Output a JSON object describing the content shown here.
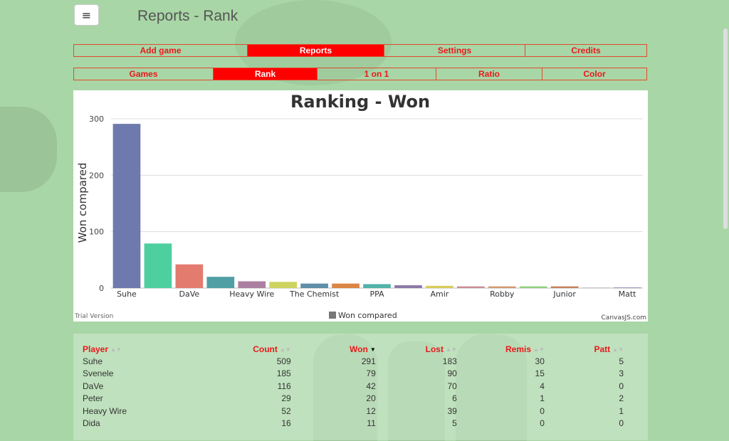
{
  "header": {
    "menu_icon": "≡",
    "title": "Reports - Rank"
  },
  "nav_main": [
    {
      "label": "Add game",
      "active": false
    },
    {
      "label": "Reports",
      "active": true
    },
    {
      "label": "Settings",
      "active": false
    },
    {
      "label": "Credits",
      "active": false
    }
  ],
  "nav_sub": [
    {
      "label": "Games",
      "active": false
    },
    {
      "label": "Rank",
      "active": true
    },
    {
      "label": "1 on 1",
      "active": false
    },
    {
      "label": "Ratio",
      "active": false
    },
    {
      "label": "Color",
      "active": false
    }
  ],
  "chart_footer": {
    "left": "Trial Version",
    "right": "CanvasJS.com"
  },
  "chart_data": {
    "type": "bar",
    "title": "Ranking - Won",
    "ylabel": "Won compared",
    "xlabel": "",
    "ylim": [
      0,
      300
    ],
    "yticks": [
      0,
      100,
      200,
      300
    ],
    "legend": {
      "name": "Won compared",
      "position": "bottom"
    },
    "categories": [
      "Suhe",
      "Svenele",
      "DaVe",
      "Peter",
      "Heavy Wire",
      "Dida",
      "The Chemist",
      "",
      "PPA",
      "",
      "Amir",
      "",
      "Robby",
      "",
      "Junior",
      "",
      "Matt"
    ],
    "tick_labels": [
      "Suhe",
      "DaVe",
      "Heavy Wire",
      "The Chemist",
      "PPA",
      "Amir",
      "Robby",
      "Junior",
      "Matt"
    ],
    "values": [
      291,
      79,
      42,
      20,
      12,
      11,
      8,
      8,
      7,
      5,
      4,
      3,
      3,
      3,
      3,
      1,
      1
    ],
    "colors": [
      "#6e79ad",
      "#4ecfa0",
      "#e37b6f",
      "#4f9fa5",
      "#ac80a0",
      "#cdd35f",
      "#5f8ea8",
      "#dd8545",
      "#52b3a8",
      "#8a79a8",
      "#d8cc5b",
      "#c98d96",
      "#d29a6e",
      "#8ed07f",
      "#c8805a",
      "#b9b9b9",
      "#7e7eaa"
    ],
    "grid": true
  },
  "table": {
    "columns": [
      "Player",
      "Count",
      "Won",
      "Lost",
      "Remis",
      "Patt"
    ],
    "rows": [
      [
        "Suhe",
        "509",
        "291",
        "183",
        "30",
        "5"
      ],
      [
        "Svenele",
        "185",
        "79",
        "90",
        "15",
        "3"
      ],
      [
        "DaVe",
        "116",
        "42",
        "70",
        "4",
        "0"
      ],
      [
        "Peter",
        "29",
        "20",
        "6",
        "1",
        "2"
      ],
      [
        "Heavy Wire",
        "52",
        "12",
        "39",
        "0",
        "1"
      ],
      [
        "Dida",
        "16",
        "11",
        "5",
        "0",
        "0"
      ]
    ]
  }
}
